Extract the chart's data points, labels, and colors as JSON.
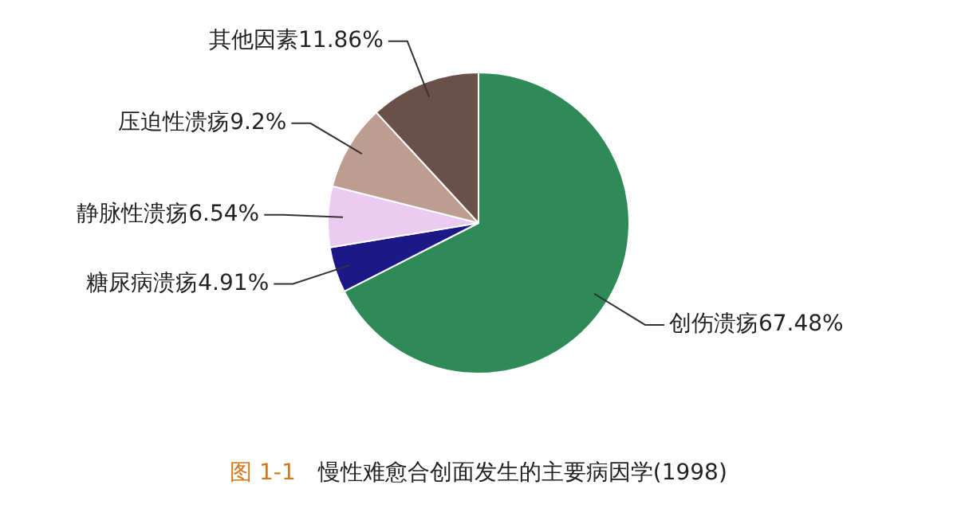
{
  "chart_data": {
    "type": "pie",
    "title": "慢性难愈合创面发生的主要病因学(1998)",
    "annotations": [
      "图 1-1"
    ],
    "categories": [
      "创伤溃疡",
      "糖尿病溃疡",
      "静脉性溃疡",
      "压迫性溃疡",
      "其他因素"
    ],
    "values": [
      67.48,
      4.91,
      6.54,
      9.2,
      11.86
    ],
    "value_labels": [
      "67.48%",
      "4.91%",
      "6.54%",
      "9.2%",
      "11.86%"
    ],
    "colors": [
      "#2e8a57",
      "#1c1888",
      "#eccbf2",
      "#bc9d90",
      "#6a5048"
    ],
    "legend": false
  }
}
